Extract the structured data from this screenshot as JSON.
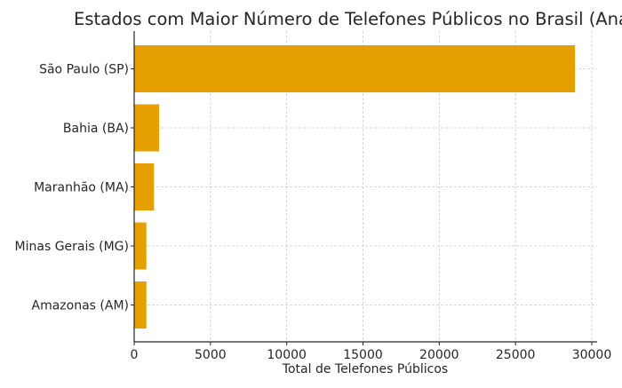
{
  "chart_data": {
    "type": "bar",
    "orientation": "horizontal",
    "title": "Estados com Maior Número de Telefones Públicos no Brasil (Ana",
    "xlabel": "Total de Telefones Públicos",
    "ylabel": "",
    "categories": [
      "São Paulo (SP)",
      "Bahia (BA)",
      "Maranhão (MA)",
      "Minas Gerais (MG)",
      "Amazonas (AM)"
    ],
    "values": [
      28900,
      1630,
      1300,
      800,
      800
    ],
    "xlim": [
      0,
      30350
    ],
    "xticks": [
      0,
      5000,
      10000,
      15000,
      20000,
      25000,
      30000
    ],
    "grid": true,
    "bar_color": "#E69F00",
    "grid_color": "#cccccc"
  }
}
